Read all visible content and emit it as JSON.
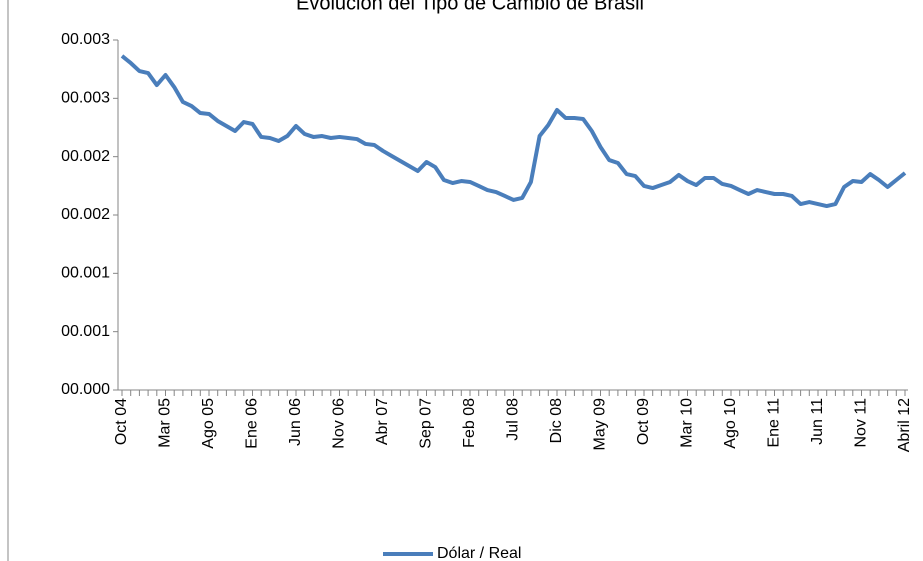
{
  "chart_data": {
    "type": "line",
    "title": "Evolución del Tipo de Cambio de Brasil",
    "categories": [
      "Oct 04",
      null,
      null,
      null,
      null,
      "Mar 05",
      null,
      null,
      null,
      null,
      "Ago 05",
      null,
      null,
      null,
      null,
      "Ene 06",
      null,
      null,
      null,
      null,
      "Jun 06",
      null,
      null,
      null,
      null,
      "Nov 06",
      null,
      null,
      null,
      null,
      "Abr 07",
      null,
      null,
      null,
      null,
      "Sep 07",
      null,
      null,
      null,
      null,
      "Feb 08",
      null,
      null,
      null,
      null,
      "Jul 08",
      null,
      null,
      null,
      null,
      "Dic 08",
      null,
      null,
      null,
      null,
      "May 09",
      null,
      null,
      null,
      null,
      "Oct 09",
      null,
      null,
      null,
      null,
      "Mar 10",
      null,
      null,
      null,
      null,
      "Ago 10",
      null,
      null,
      null,
      null,
      "Ene 11",
      null,
      null,
      null,
      null,
      "Jun 11",
      null,
      null,
      null,
      null,
      "Nov 11",
      null,
      null,
      null,
      null,
      "Abril 12"
    ],
    "series": [
      {
        "name": "Dólar / Real",
        "color": "#4a7ebb",
        "values": [
          0.002863,
          0.002803,
          0.002734,
          0.002717,
          0.002614,
          0.0027,
          0.002597,
          0.002469,
          0.002434,
          0.002374,
          0.002366,
          0.002306,
          0.002263,
          0.00222,
          0.002297,
          0.00228,
          0.002169,
          0.00216,
          0.002134,
          0.002177,
          0.002263,
          0.002194,
          0.002169,
          0.002177,
          0.00216,
          0.002169,
          0.00216,
          0.002151,
          0.002109,
          0.0021,
          0.002049,
          0.002006,
          0.001963,
          0.00192,
          0.001877,
          0.001954,
          0.001911,
          0.0018,
          0.001774,
          0.001791,
          0.001783,
          0.001749,
          0.001714,
          0.001697,
          0.001663,
          0.001629,
          0.001646,
          0.001783,
          0.002177,
          0.002271,
          0.0024,
          0.002331,
          0.002331,
          0.002323,
          0.00222,
          0.002083,
          0.001971,
          0.001946,
          0.001851,
          0.001834,
          0.001749,
          0.001731,
          0.001757,
          0.001783,
          0.001843,
          0.001791,
          0.001757,
          0.001817,
          0.001817,
          0.001766,
          0.001749,
          0.001714,
          0.00168,
          0.001714,
          0.001697,
          0.00168,
          0.00168,
          0.001663,
          0.001594,
          0.001611,
          0.001594,
          0.001577,
          0.001594,
          0.00174,
          0.001791,
          0.001783,
          0.001851,
          0.0018,
          0.00174,
          0.0018,
          0.00186
        ]
      }
    ],
    "ylim": [
      0,
      0.003
    ],
    "yticks": [
      {
        "value": 0,
        "label": "00.000"
      },
      {
        "value": 0.0005,
        "label": "00.001"
      },
      {
        "value": 0.001,
        "label": "00.001"
      },
      {
        "value": 0.0015,
        "label": "00.002"
      },
      {
        "value": 0.002,
        "label": "00.002"
      },
      {
        "value": 0.0025,
        "label": "00.003"
      },
      {
        "value": 0.003,
        "label": "00.003"
      }
    ],
    "legend": "bottom"
  }
}
